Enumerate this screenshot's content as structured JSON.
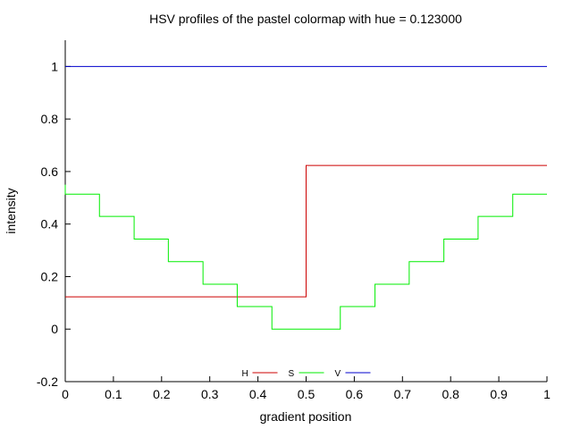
{
  "chart_data": {
    "type": "line",
    "title": "HSV profiles of the pastel colormap with hue = 0.123000",
    "xlabel": "gradient position",
    "ylabel": "intensity",
    "xlim": [
      0,
      1
    ],
    "ylim": [
      -0.2,
      1.1
    ],
    "xticks": [
      0,
      0.1,
      0.2,
      0.3,
      0.4,
      0.5,
      0.6,
      0.7,
      0.8,
      0.9,
      1
    ],
    "xtick_labels": [
      "0",
      "0.1",
      "0.2",
      "0.3",
      "0.4",
      "0.5",
      "0.6",
      "0.7",
      "0.8",
      "0.9",
      "1"
    ],
    "yticks": [
      -0.2,
      0,
      0.2,
      0.4,
      0.6,
      0.8,
      1
    ],
    "ytick_labels": [
      "-0.2",
      "0",
      "0.2",
      "0.4",
      "0.6",
      "0.8",
      "1"
    ],
    "grid": false,
    "legend_position": "bottom-center",
    "series": [
      {
        "name": "H",
        "color": "#cc0000",
        "step": true,
        "x": [
          0,
          0.5,
          0.5,
          1
        ],
        "y": [
          0.123,
          0.123,
          0.623,
          0.623
        ]
      },
      {
        "name": "S",
        "color": "#00ee00",
        "step": true,
        "x": [
          0,
          0,
          0.071,
          0.071,
          0.143,
          0.143,
          0.214,
          0.214,
          0.286,
          0.286,
          0.357,
          0.357,
          0.429,
          0.429,
          0.571,
          0.571,
          0.643,
          0.643,
          0.714,
          0.714,
          0.786,
          0.786,
          0.857,
          0.857,
          0.929,
          0.929,
          1
        ],
        "y": [
          0.55,
          0.514,
          0.514,
          0.429,
          0.429,
          0.343,
          0.343,
          0.257,
          0.257,
          0.171,
          0.171,
          0.086,
          0.086,
          0,
          0,
          0.086,
          0.086,
          0.171,
          0.171,
          0.257,
          0.257,
          0.343,
          0.343,
          0.429,
          0.429,
          0.514,
          0.514
        ]
      },
      {
        "name": "V",
        "color": "#0000cc",
        "step": true,
        "x": [
          0,
          1
        ],
        "y": [
          1,
          1
        ]
      }
    ]
  }
}
